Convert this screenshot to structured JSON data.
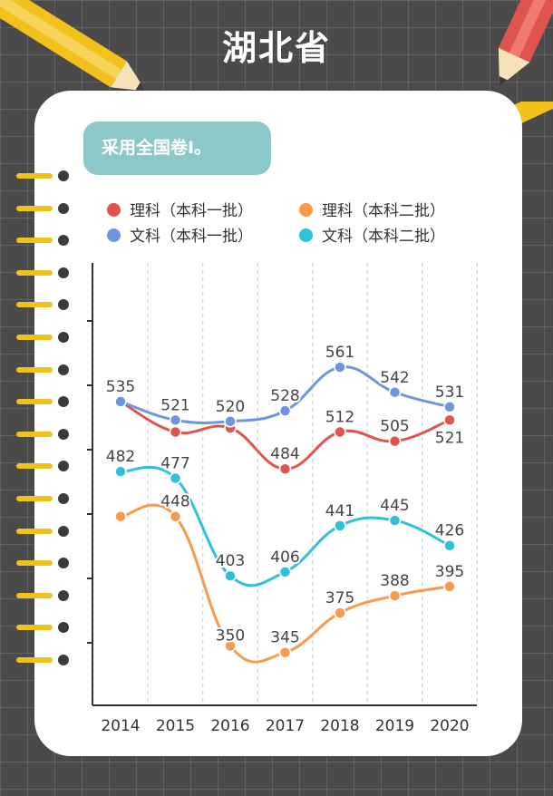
{
  "page": {
    "title": "湖北省"
  },
  "badge": {
    "text": "采用全国卷Ⅰ。"
  },
  "colors": {
    "like_yiben": "#e0544e",
    "like_erben": "#f79a4a",
    "wenke_yiben": "#6f95e0",
    "wenke_erben": "#2ec1d8",
    "badge": "#8dc8c8",
    "background": "#4a4a4a"
  },
  "chart_data": {
    "type": "line",
    "x": [
      "2014",
      "2015",
      "2016",
      "2017",
      "2018",
      "2019",
      "2020"
    ],
    "series": [
      {
        "name": "理科（本科一批）",
        "color": "#e0544e",
        "values": [
          535,
          512,
          515,
          484,
          512,
          505,
          521
        ]
      },
      {
        "name": "文科（本科一批）",
        "color": "#6f95e0",
        "values": [
          535,
          521,
          520,
          528,
          561,
          542,
          531
        ]
      },
      {
        "name": "理科（本科二批）",
        "color": "#f79a4a",
        "values": [
          448,
          448,
          350,
          345,
          375,
          388,
          395
        ]
      },
      {
        "name": "文科（本科二批）",
        "color": "#2ec1d8",
        "values": [
          482,
          477,
          403,
          406,
          441,
          445,
          426
        ]
      }
    ],
    "point_labels": [
      {
        "series": 1,
        "index": 0,
        "text": "535"
      },
      {
        "series": 1,
        "index": 1,
        "text": "521"
      },
      {
        "series": 1,
        "index": 2,
        "text": "520"
      },
      {
        "series": 1,
        "index": 3,
        "text": "528"
      },
      {
        "series": 1,
        "index": 4,
        "text": "561"
      },
      {
        "series": 1,
        "index": 5,
        "text": "542"
      },
      {
        "series": 1,
        "index": 6,
        "text": "531"
      },
      {
        "series": 0,
        "index": 3,
        "text": "484"
      },
      {
        "series": 0,
        "index": 4,
        "text": "512"
      },
      {
        "series": 0,
        "index": 5,
        "text": "505"
      },
      {
        "series": 0,
        "index": 6,
        "text": "521"
      },
      {
        "series": 3,
        "index": 0,
        "text": "482"
      },
      {
        "series": 3,
        "index": 1,
        "text": "477"
      },
      {
        "series": 3,
        "index": 2,
        "text": "403"
      },
      {
        "series": 3,
        "index": 3,
        "text": "406"
      },
      {
        "series": 3,
        "index": 4,
        "text": "441"
      },
      {
        "series": 3,
        "index": 5,
        "text": "445"
      },
      {
        "series": 3,
        "index": 6,
        "text": "426"
      },
      {
        "series": 2,
        "index": 1,
        "text": "448"
      },
      {
        "series": 2,
        "index": 2,
        "text": "350"
      },
      {
        "series": 2,
        "index": 3,
        "text": "345"
      },
      {
        "series": 2,
        "index": 4,
        "text": "375"
      },
      {
        "series": 2,
        "index": 5,
        "text": "388"
      },
      {
        "series": 2,
        "index": 6,
        "text": "395"
      }
    ],
    "ylim": [
      305,
      640
    ],
    "grid": "vertical-dashed",
    "legend_position": "top-left"
  }
}
